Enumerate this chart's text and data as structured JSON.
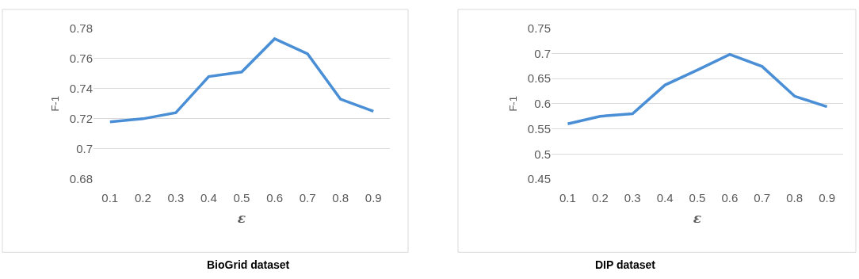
{
  "chart_data": [
    {
      "type": "line",
      "title": "BioGrid dataset",
      "xlabel": "ε",
      "ylabel": "F-1",
      "categories": [
        "0.1",
        "0.2",
        "0.3",
        "0.4",
        "0.5",
        "0.6",
        "0.7",
        "0.8",
        "0.9"
      ],
      "series": [
        {
          "color": "#4a8fd6",
          "values": [
            0.718,
            0.72,
            0.724,
            0.748,
            0.751,
            0.773,
            0.763,
            0.733,
            0.725
          ]
        }
      ],
      "ylim": [
        0.68,
        0.78
      ],
      "yticks": [
        0.68,
        0.7,
        0.72,
        0.74,
        0.76,
        0.78
      ],
      "grid": "y",
      "marker": "none",
      "line_style": "solid"
    },
    {
      "type": "line",
      "title": "DIP dataset",
      "xlabel": "ε",
      "ylabel": "F-1",
      "categories": [
        "0.1",
        "0.2",
        "0.3",
        "0.4",
        "0.5",
        "0.6",
        "0.7",
        "0.8",
        "0.9"
      ],
      "series": [
        {
          "color": "#4a8fd6",
          "values": [
            0.56,
            0.575,
            0.58,
            0.637,
            0.667,
            0.698,
            0.674,
            0.615,
            0.594
          ]
        }
      ],
      "ylim": [
        0.45,
        0.75
      ],
      "yticks": [
        0.45,
        0.5,
        0.55,
        0.6,
        0.65,
        0.7,
        0.75
      ],
      "grid": "y",
      "marker": "none",
      "line_style": "solid"
    }
  ]
}
